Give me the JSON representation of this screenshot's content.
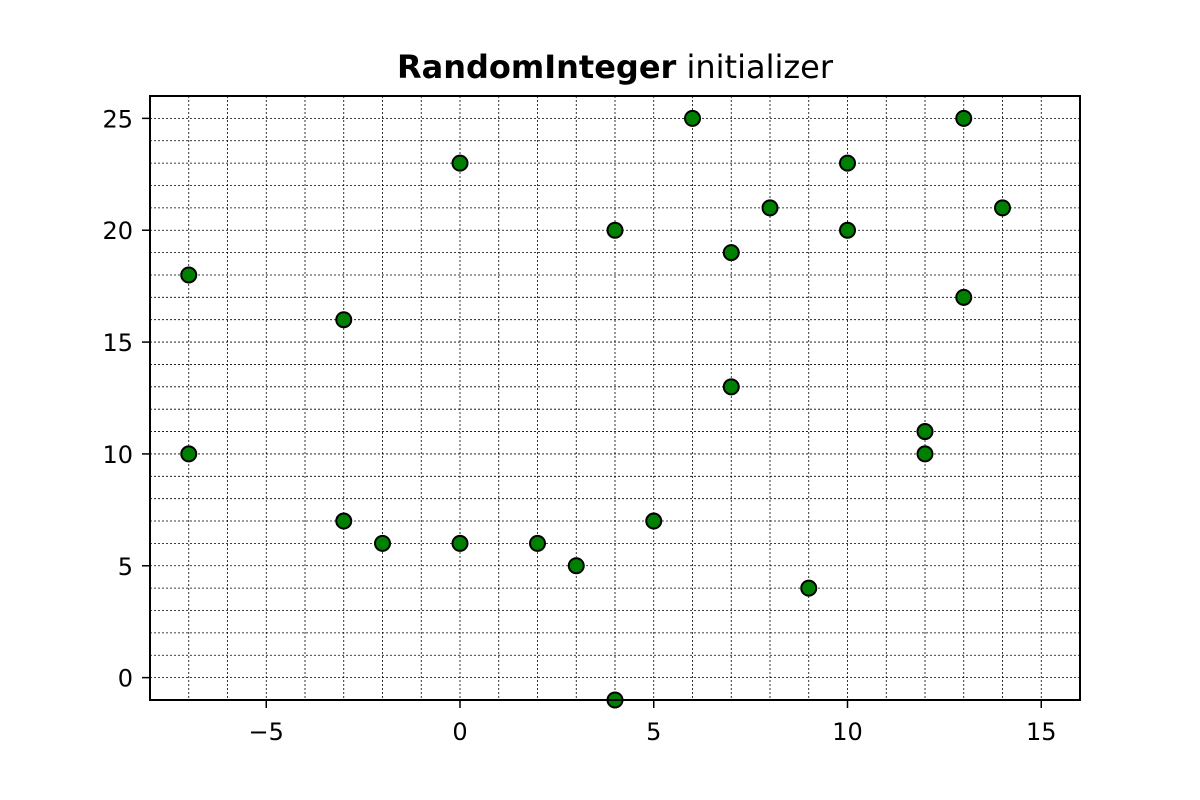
{
  "chart_data": {
    "type": "scatter",
    "title_bold": "RandomInteger",
    "title_rest": " initializer",
    "xlabel": "",
    "ylabel": "",
    "xlim": [
      -8,
      16
    ],
    "ylim": [
      -1,
      26
    ],
    "grid": true,
    "grid_style": "dashed-minor",
    "x_ticks": [
      -5,
      0,
      5,
      10,
      15
    ],
    "x_tick_labels": [
      "−5",
      "0",
      "5",
      "10",
      "15"
    ],
    "y_ticks": [
      0,
      5,
      10,
      15,
      20,
      25
    ],
    "y_tick_labels": [
      "0",
      "5",
      "10",
      "15",
      "20",
      "25"
    ],
    "marker_color": "#008000",
    "marker_edge_color": "#000000",
    "points": [
      {
        "x": -7,
        "y": 18
      },
      {
        "x": -7,
        "y": 10
      },
      {
        "x": -3,
        "y": 16
      },
      {
        "x": -3,
        "y": 7
      },
      {
        "x": -2,
        "y": 6
      },
      {
        "x": 0,
        "y": 23
      },
      {
        "x": 0,
        "y": 6
      },
      {
        "x": 2,
        "y": 6
      },
      {
        "x": 3,
        "y": 5
      },
      {
        "x": 4,
        "y": 20
      },
      {
        "x": 4,
        "y": -1
      },
      {
        "x": 5,
        "y": 7
      },
      {
        "x": 6,
        "y": 25
      },
      {
        "x": 7,
        "y": 19
      },
      {
        "x": 7,
        "y": 13
      },
      {
        "x": 8,
        "y": 21
      },
      {
        "x": 9,
        "y": 4
      },
      {
        "x": 10,
        "y": 23
      },
      {
        "x": 10,
        "y": 20
      },
      {
        "x": 12,
        "y": 11
      },
      {
        "x": 12,
        "y": 10
      },
      {
        "x": 13,
        "y": 25
      },
      {
        "x": 13,
        "y": 17
      },
      {
        "x": 14,
        "y": 21
      }
    ]
  }
}
